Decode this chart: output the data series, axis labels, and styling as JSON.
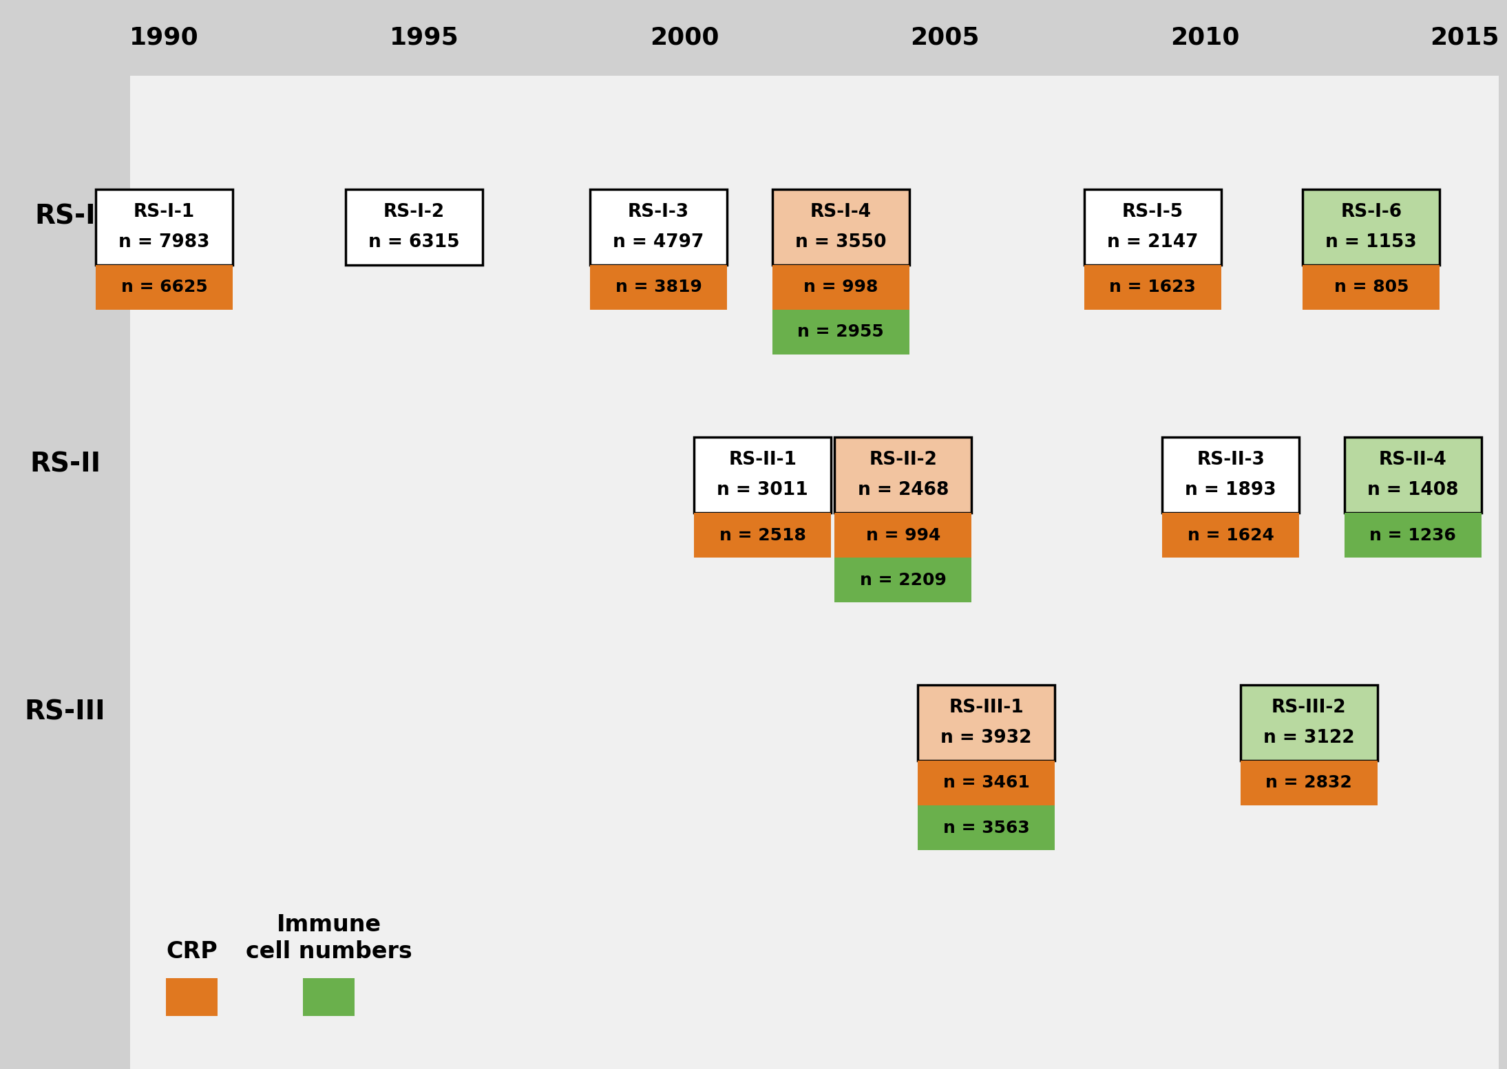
{
  "bg_color": "#d0d0d0",
  "panel_color": "#f0f0f0",
  "left_panel_color": "#d0d0d0",
  "orange_dark": "#e07820",
  "orange_light": "#f2c4a0",
  "green_dark": "#6ab04c",
  "green_light": "#b8d9a0",
  "years": [
    1990,
    1995,
    2000,
    2005,
    2010,
    2015
  ],
  "cohort_rows": [
    "RS-I",
    "RS-II",
    "RS-III"
  ],
  "studies": [
    {
      "key": "RS-I-1",
      "label": "RS-I-1",
      "n_total": "n = 7983",
      "col": 0,
      "row": 0,
      "shade": "none",
      "crp": "n = 6625",
      "crp_shaded": false,
      "immune": null,
      "immune_shaded": false
    },
    {
      "key": "RS-I-2",
      "label": "RS-I-2",
      "n_total": "n = 6315",
      "col": 1,
      "row": 0,
      "shade": "none",
      "crp": null,
      "crp_shaded": false,
      "immune": null,
      "immune_shaded": false
    },
    {
      "key": "RS-I-3",
      "label": "RS-I-3",
      "n_total": "n = 4797",
      "col": 2,
      "row": 0,
      "shade": "none",
      "crp": "n = 3819",
      "crp_shaded": false,
      "immune": null,
      "immune_shaded": false
    },
    {
      "key": "RS-I-4",
      "label": "RS-I-4",
      "n_total": "n = 3550",
      "col": 3,
      "row": 0,
      "shade": "orange",
      "crp": "n = 998",
      "crp_shaded": true,
      "immune": "n = 2955",
      "immune_shaded": true
    },
    {
      "key": "RS-I-5",
      "label": "RS-I-5",
      "n_total": "n = 2147",
      "col": 4,
      "row": 0,
      "shade": "none",
      "crp": "n = 1623",
      "crp_shaded": false,
      "immune": null,
      "immune_shaded": false
    },
    {
      "key": "RS-I-6",
      "label": "RS-I-6",
      "n_total": "n = 1153",
      "col": 5,
      "row": 0,
      "shade": "green",
      "crp": "n = 805",
      "crp_shaded": false,
      "immune": null,
      "immune_shaded": true
    },
    {
      "key": "RS-II-1",
      "label": "RS-II-1",
      "n_total": "n = 3011",
      "col": 2,
      "row": 1,
      "shade": "none",
      "crp": "n = 2518",
      "crp_shaded": false,
      "immune": null,
      "immune_shaded": false
    },
    {
      "key": "RS-II-2",
      "label": "RS-II-2",
      "n_total": "n = 2468",
      "col": 3,
      "row": 1,
      "shade": "orange",
      "crp": "n = 994",
      "crp_shaded": true,
      "immune": "n = 2209",
      "immune_shaded": true
    },
    {
      "key": "RS-II-3",
      "label": "RS-II-3",
      "n_total": "n = 1893",
      "col": 4,
      "row": 1,
      "shade": "none",
      "crp": "n = 1624",
      "crp_shaded": false,
      "immune": null,
      "immune_shaded": false
    },
    {
      "key": "RS-II-4",
      "label": "RS-II-4",
      "n_total": "n = 1408",
      "col": 5,
      "row": 1,
      "shade": "green",
      "crp": null,
      "crp_shaded": false,
      "immune": "n = 1236",
      "immune_shaded": true
    },
    {
      "key": "RS-III-1",
      "label": "RS-III-1",
      "n_total": "n = 3932",
      "col": 3,
      "row": 2,
      "shade": "orange",
      "crp": "n = 3461",
      "crp_shaded": true,
      "immune": "n = 3563",
      "immune_shaded": true
    },
    {
      "key": "RS-III-2",
      "label": "RS-III-2",
      "n_total": "n = 3122",
      "col": 4,
      "row": 2,
      "shade": "green",
      "crp": "n = 2832",
      "crp_shaded": false,
      "immune": null,
      "immune_shaded": true
    }
  ],
  "legend_crp_label": "CRP",
  "legend_immune_label": "Immune\ncell numbers"
}
